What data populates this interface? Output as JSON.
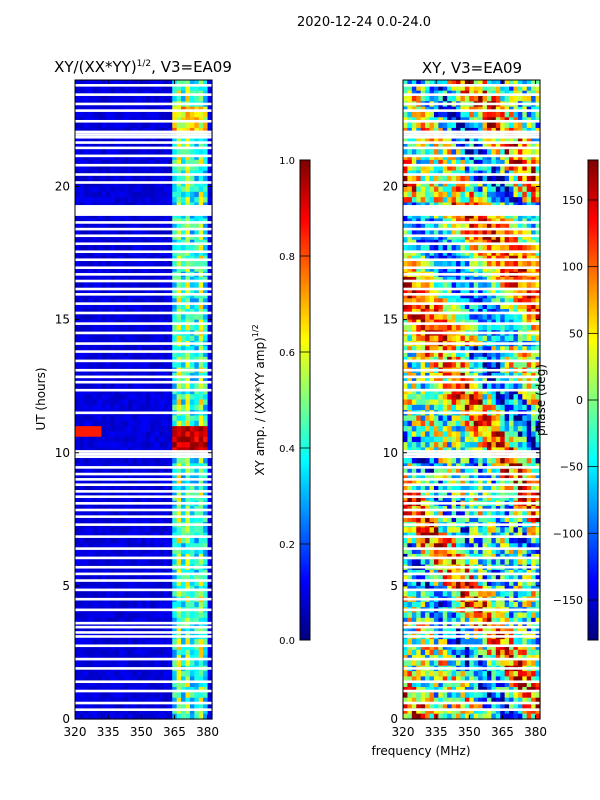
{
  "suptitle": "2020-12-24 0.0-24.0",
  "xlabel_shared": "frequency (MHz)",
  "chart_data": [
    {
      "type": "heatmap",
      "title_main": "XY/(XX*YY)",
      "title_exp": "1/2",
      "title_tail": ", V3=EA09",
      "ylabel": "UT (hours)",
      "xlabel": "",
      "xlim": [
        320,
        382
      ],
      "ylim": [
        0,
        24
      ],
      "xticks": [
        "320",
        "335",
        "350",
        "365",
        "380"
      ],
      "xtick_values": [
        320,
        335,
        350,
        365,
        380
      ],
      "yticks": [
        "0",
        "5",
        "10",
        "15",
        "20"
      ],
      "ytick_values": [
        0,
        5,
        10,
        15,
        20
      ],
      "colorbar": {
        "label_main": "XY amp. / (XX*YY amp)",
        "label_exp": "1/2",
        "range": [
          0.0,
          1.0
        ],
        "ticks": [
          "0.0",
          "0.2",
          "0.4",
          "0.6",
          "0.8",
          "1.0"
        ],
        "tick_values": [
          0.0,
          0.2,
          0.4,
          0.6,
          0.8,
          1.0
        ]
      }
    },
    {
      "type": "heatmap",
      "title_main": "XY, V3=EA09",
      "ylabel": "",
      "xlabel": "frequency (MHz)",
      "xlim": [
        320,
        382
      ],
      "ylim": [
        0,
        24
      ],
      "xticks": [
        "320",
        "335",
        "350",
        "365",
        "380"
      ],
      "xtick_values": [
        320,
        335,
        350,
        365,
        380
      ],
      "yticks": [
        "0",
        "5",
        "10",
        "15",
        "20"
      ],
      "ytick_values": [
        0,
        5,
        10,
        15,
        20
      ],
      "colorbar": {
        "label_main": "phase (deg)",
        "range": [
          -180,
          180
        ],
        "ticks": [
          "−150",
          "−100",
          "−50",
          "0",
          "50",
          "100",
          "150"
        ],
        "tick_values": [
          -150,
          -100,
          -50,
          0,
          50,
          100,
          150
        ]
      }
    }
  ],
  "flagged_hours": [
    0.35,
    0.6,
    1.05,
    1.4,
    1.9,
    2.25,
    2.75,
    3.1,
    3.25,
    3.45,
    3.6,
    4.1,
    4.5,
    4.85,
    5.2,
    5.45,
    5.7,
    6.05,
    6.4,
    6.85,
    7.3,
    7.6,
    7.85,
    8.1,
    8.35,
    8.55,
    8.8,
    9.0,
    9.2,
    9.45,
    9.85,
    9.95,
    10.05,
    11.5,
    12.35,
    12.65,
    12.85,
    13.1,
    13.45,
    13.8,
    14.1,
    14.5,
    14.85,
    15.25,
    15.6,
    15.95,
    16.15,
    16.45,
    16.7,
    16.95,
    17.25,
    17.55,
    17.85,
    18.15,
    18.4,
    18.65,
    18.95,
    19.05,
    19.15,
    19.25,
    20.15,
    20.45,
    20.8,
    21.15,
    21.45,
    21.65,
    21.85,
    21.95,
    22.05,
    22.45,
    22.85,
    23.1,
    23.45,
    23.8
  ]
}
